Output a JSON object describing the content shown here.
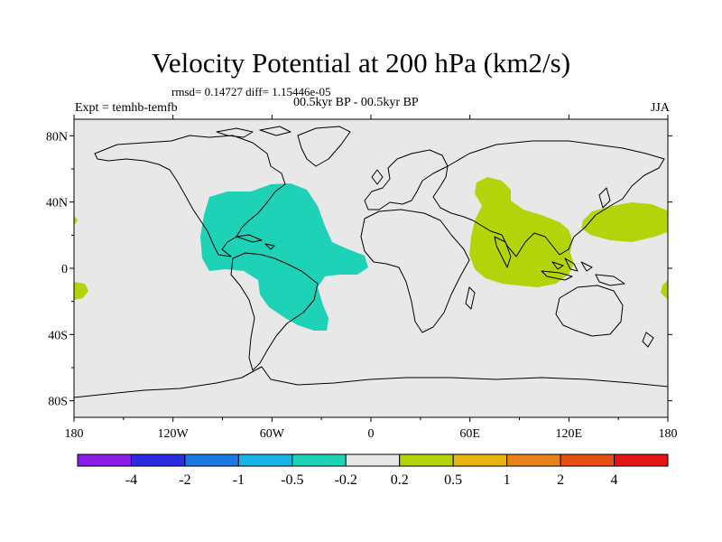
{
  "title": "Velocity Potential at 200 hPa (km2/s)",
  "stats": "rmsd= 0.14727 diff= 1.15446e-05",
  "left_label": "Expt = temhb-temfb",
  "center_label": "00.5kyr BP - 00.5kyr BP",
  "right_label": "JJA",
  "lat_labels": [
    "80N",
    "40N",
    "0",
    "40S",
    "80S"
  ],
  "lon_labels": [
    "180",
    "120W",
    "60W",
    "0",
    "60E",
    "120E",
    "180"
  ],
  "colorbar": {
    "colors": [
      "#8a1ee6",
      "#2a2ee0",
      "#1a78e0",
      "#18b4e6",
      "#1ed2b8",
      "#e8e8e8",
      "#b4d40a",
      "#e6b410",
      "#e6821a",
      "#e64e14",
      "#e61414"
    ],
    "labels": [
      "-4",
      "-2",
      "-1",
      "-0.5",
      "-0.2",
      "0.2",
      "0.5",
      "1",
      "2",
      "4"
    ]
  },
  "anomaly_colors": {
    "negative": "#1ed2b8",
    "positive": "#b4d40a",
    "ocean": "#e8e8e8"
  }
}
